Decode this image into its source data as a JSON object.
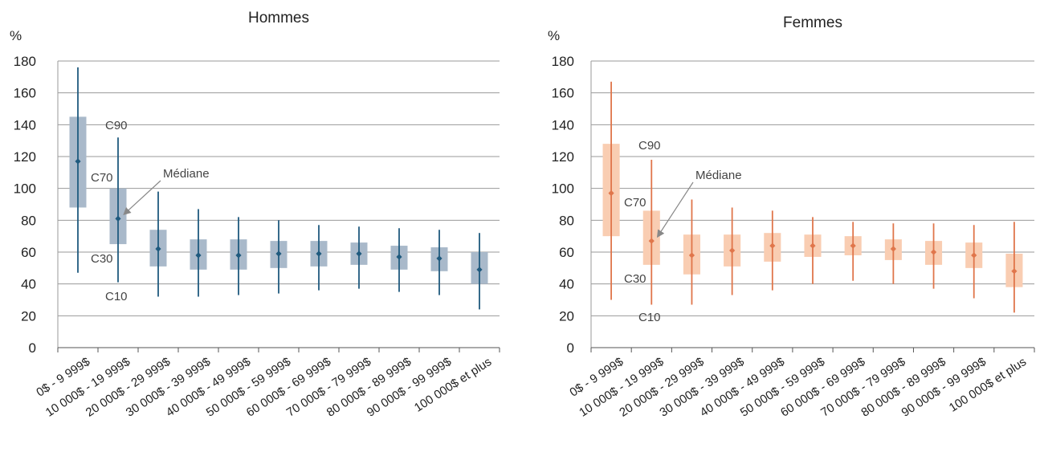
{
  "colors": {
    "hommes_box": "#a9b9ca",
    "hommes_line": "#1f5a7e",
    "femmes_box": "#f9cdb2",
    "femmes_line": "#e0764b",
    "grid": "#9a9a9a"
  },
  "chart_data": [
    {
      "type": "boxplot",
      "title": "Hommes",
      "ylabel": "%",
      "ylim": [
        0,
        180
      ],
      "yticks": [
        0,
        20,
        40,
        60,
        80,
        100,
        120,
        140,
        160,
        180
      ],
      "grid": true,
      "categories": [
        "0$ - 9 999$",
        "10 000$ - 19 999$",
        "20 000$ - 29 999$",
        "30 000$ - 39 999$",
        "40 000$ - 49 999$",
        "50 000$ - 59 999$",
        "60 000$ - 69 999$",
        "70 000$ - 79 999$",
        "80 000$ - 89 999$",
        "90 000$ - 99 999$",
        "100 000$ et plus"
      ],
      "c10": [
        47,
        41,
        32,
        32,
        33,
        34,
        36,
        37,
        35,
        33,
        24
      ],
      "c30": [
        88,
        65,
        51,
        49,
        49,
        50,
        51,
        52,
        49,
        48,
        40
      ],
      "mediane": [
        117,
        81,
        62,
        58,
        58,
        59,
        59,
        59,
        57,
        56,
        49
      ],
      "c70": [
        145,
        100,
        74,
        68,
        68,
        67,
        67,
        66,
        64,
        63,
        60
      ],
      "c90": [
        176,
        132,
        98,
        87,
        82,
        80,
        77,
        76,
        75,
        74,
        72
      ],
      "annotations": {
        "c90": "C90",
        "c70": "C70",
        "mediane": "Médiane",
        "c30": "C30",
        "c10": "C10"
      }
    },
    {
      "type": "boxplot",
      "title": "Femmes",
      "ylabel": "%",
      "ylim": [
        0,
        180
      ],
      "yticks": [
        0,
        20,
        40,
        60,
        80,
        100,
        120,
        140,
        160,
        180
      ],
      "grid": true,
      "categories": [
        "0$ - 9 999$",
        "10 000$ - 19 999$",
        "20 000$ - 29 999$",
        "30 000$ - 39 999$",
        "40 000$ - 49 999$",
        "50 000$ - 59 999$",
        "60 000$ - 69 999$",
        "70 000$ - 79 999$",
        "80 000$ - 89 999$",
        "90 000$ - 99 999$",
        "100 000$ et plus"
      ],
      "c10": [
        30,
        27,
        27,
        33,
        36,
        40,
        42,
        40,
        37,
        31,
        22
      ],
      "c30": [
        70,
        52,
        46,
        51,
        54,
        57,
        58,
        55,
        52,
        50,
        38
      ],
      "mediane": [
        97,
        67,
        58,
        61,
        64,
        64,
        64,
        62,
        60,
        58,
        48
      ],
      "c70": [
        128,
        86,
        71,
        71,
        72,
        71,
        70,
        68,
        67,
        66,
        59
      ],
      "c90": [
        167,
        118,
        93,
        88,
        86,
        82,
        79,
        78,
        78,
        77,
        79
      ],
      "annotations": {
        "c90": "C90",
        "c70": "C70",
        "mediane": "Médiane",
        "c30": "C30",
        "c10": "C10"
      }
    }
  ]
}
